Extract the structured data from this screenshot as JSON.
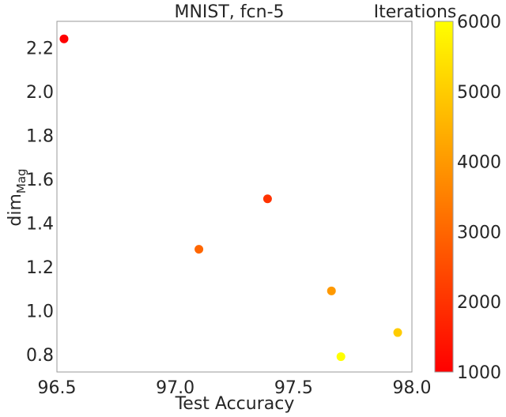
{
  "chart_data": {
    "type": "scatter",
    "title": "MNIST, fcn-5",
    "xlabel": "Test Accuracy",
    "ylabel": "dim",
    "ylabel_subscript": "Mag",
    "xlim": [
      96.5,
      98.0
    ],
    "ylim": [
      0.72,
      2.32
    ],
    "xticks": [
      "96.5",
      "97.0",
      "97.5",
      "98.0"
    ],
    "yticks": [
      "0.8",
      "1.0",
      "1.2",
      "1.4",
      "1.6",
      "1.8",
      "2.0",
      "2.2"
    ],
    "grid": false,
    "colorbar": {
      "label": "Iterations",
      "range": [
        1000,
        6000
      ],
      "ticks": [
        "1000",
        "2000",
        "3000",
        "4000",
        "5000",
        "6000"
      ],
      "colormap": "autumn",
      "colors": [
        "#ff0000",
        "#ffff00"
      ]
    },
    "points": [
      {
        "x": 96.53,
        "y": 2.24,
        "iter": 1000
      },
      {
        "x": 97.39,
        "y": 1.51,
        "iter": 2000
      },
      {
        "x": 97.1,
        "y": 1.28,
        "iter": 3000
      },
      {
        "x": 97.66,
        "y": 1.09,
        "iter": 4000
      },
      {
        "x": 97.94,
        "y": 0.9,
        "iter": 5000
      },
      {
        "x": 97.7,
        "y": 0.79,
        "iter": 6000
      }
    ]
  }
}
